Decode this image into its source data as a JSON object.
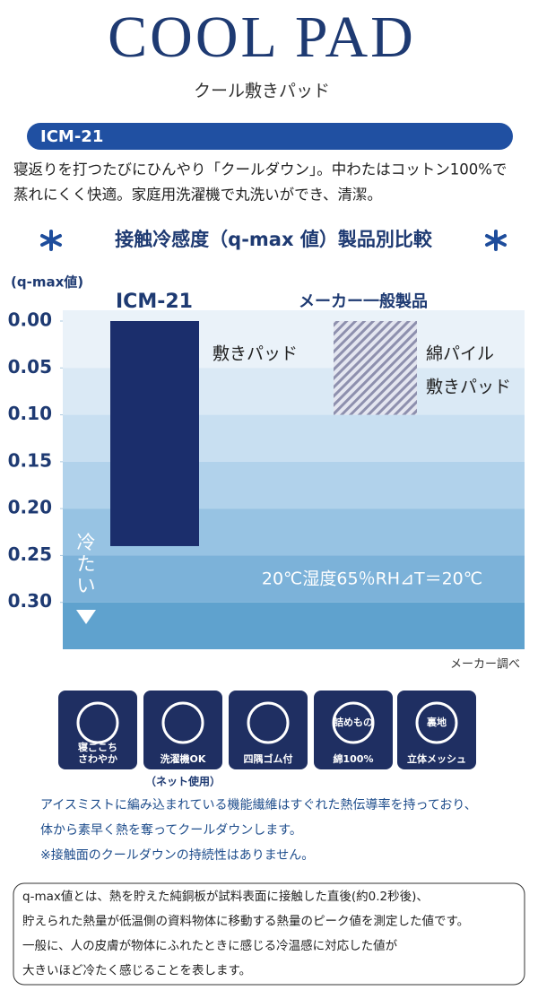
{
  "header": {
    "title": "COOL PAD",
    "subtitle": "クール敷きパッド",
    "model": "ICM-21"
  },
  "description": [
    "寝返りを打つたびにひんやり「クールダウン」。中わたはコットン100%で",
    "蒸れにくく快適。家庭用洗濯機で丸洗いができ、清潔。"
  ],
  "chart_data": {
    "type": "bar",
    "title": "接触冷感度（q-max 値）製品別比較",
    "y_label": "(q-max値)",
    "categories": [
      "ICM-21",
      "メーカー一般製品"
    ],
    "values": [
      0.24,
      0.1
    ],
    "bar_labels": [
      [
        "敷きパッド"
      ],
      [
        "綿パイル",
        "敷きパッド"
      ]
    ],
    "colors": [
      "#1b2e6c",
      "#9a9bb6"
    ],
    "patterns": [
      "solid",
      "stripes"
    ],
    "ylim": [
      0,
      0.35
    ],
    "y_inverted": true,
    "yticks": [
      {
        "value": 0,
        "label": "0.00"
      },
      0.05,
      {
        "value": 0.1,
        "label": "0.10"
      },
      0.15,
      {
        "value": 0.2,
        "label": "0.20"
      },
      0.25,
      {
        "value": 0.3,
        "label": "0.30"
      }
    ],
    "arrow_label": "冷たい",
    "annotation": "20℃湿度65％RH⊿T＝20℃",
    "source": "メーカー調べ"
  },
  "icons": [
    {
      "lines": [
        "寝ごこち",
        "さわやか"
      ]
    },
    {
      "lines": [
        "洗濯機OK"
      ],
      "note": "（ネット使用）"
    },
    {
      "lines": [
        "四隅ゴム付"
      ]
    },
    {
      "lines": [
        "詰めもの",
        "綿100%"
      ]
    },
    {
      "lines": [
        "裏地",
        "立体メッシュ"
      ]
    }
  ],
  "notes": [
    "アイスミストに編み込まれている機能繊維はすぐれた熱伝導率を持っており、",
    "体から素早く熱を奪ってクールダウンします。",
    "※接触面のクールダウンの持続性はありません。"
  ],
  "definition": [
    "q-max値とは、熱を貯えた純銅板が試料表面に接触した直後(約0.2秒後)、",
    "貯えられた熱量が低温側の資料物体に移動する熱量のピーク値を測定した値です。",
    "一般に、人の皮膚が物体にふれたときに感じる冷温感に対応した値が",
    "大きいほど冷たく感じることを表します。"
  ]
}
